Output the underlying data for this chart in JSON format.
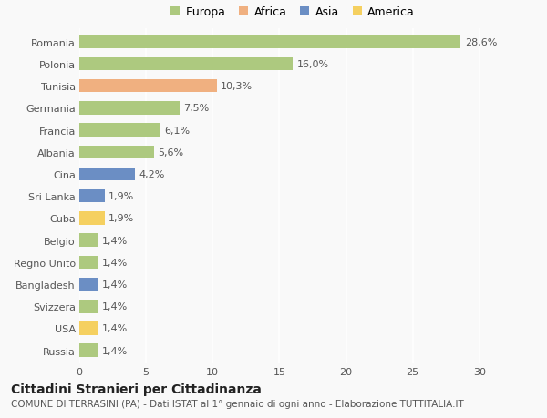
{
  "countries": [
    "Romania",
    "Polonia",
    "Tunisia",
    "Germania",
    "Francia",
    "Albania",
    "Cina",
    "Sri Lanka",
    "Cuba",
    "Belgio",
    "Regno Unito",
    "Bangladesh",
    "Svizzera",
    "USA",
    "Russia"
  ],
  "values": [
    28.6,
    16.0,
    10.3,
    7.5,
    6.1,
    5.6,
    4.2,
    1.9,
    1.9,
    1.4,
    1.4,
    1.4,
    1.4,
    1.4,
    1.4
  ],
  "labels": [
    "28,6%",
    "16,0%",
    "10,3%",
    "7,5%",
    "6,1%",
    "5,6%",
    "4,2%",
    "1,9%",
    "1,9%",
    "1,4%",
    "1,4%",
    "1,4%",
    "1,4%",
    "1,4%",
    "1,4%"
  ],
  "continent": [
    "Europa",
    "Europa",
    "Africa",
    "Europa",
    "Europa",
    "Europa",
    "Asia",
    "Asia",
    "America",
    "Europa",
    "Europa",
    "Asia",
    "Europa",
    "America",
    "Europa"
  ],
  "colors": {
    "Europa": "#adc97f",
    "Africa": "#f0b080",
    "Asia": "#6b8ec4",
    "America": "#f5d060"
  },
  "legend_order": [
    "Europa",
    "Africa",
    "Asia",
    "America"
  ],
  "title": "Cittadini Stranieri per Cittadinanza",
  "subtitle": "COMUNE DI TERRASINI (PA) - Dati ISTAT al 1° gennaio di ogni anno - Elaborazione TUTTITALIA.IT",
  "xlim": [
    0,
    32
  ],
  "xticks": [
    0,
    5,
    10,
    15,
    20,
    25,
    30
  ],
  "background_color": "#f9f9f9",
  "grid_color": "#ffffff",
  "bar_height": 0.6,
  "title_fontsize": 10,
  "subtitle_fontsize": 7.5,
  "label_fontsize": 8,
  "tick_fontsize": 8,
  "legend_fontsize": 9
}
